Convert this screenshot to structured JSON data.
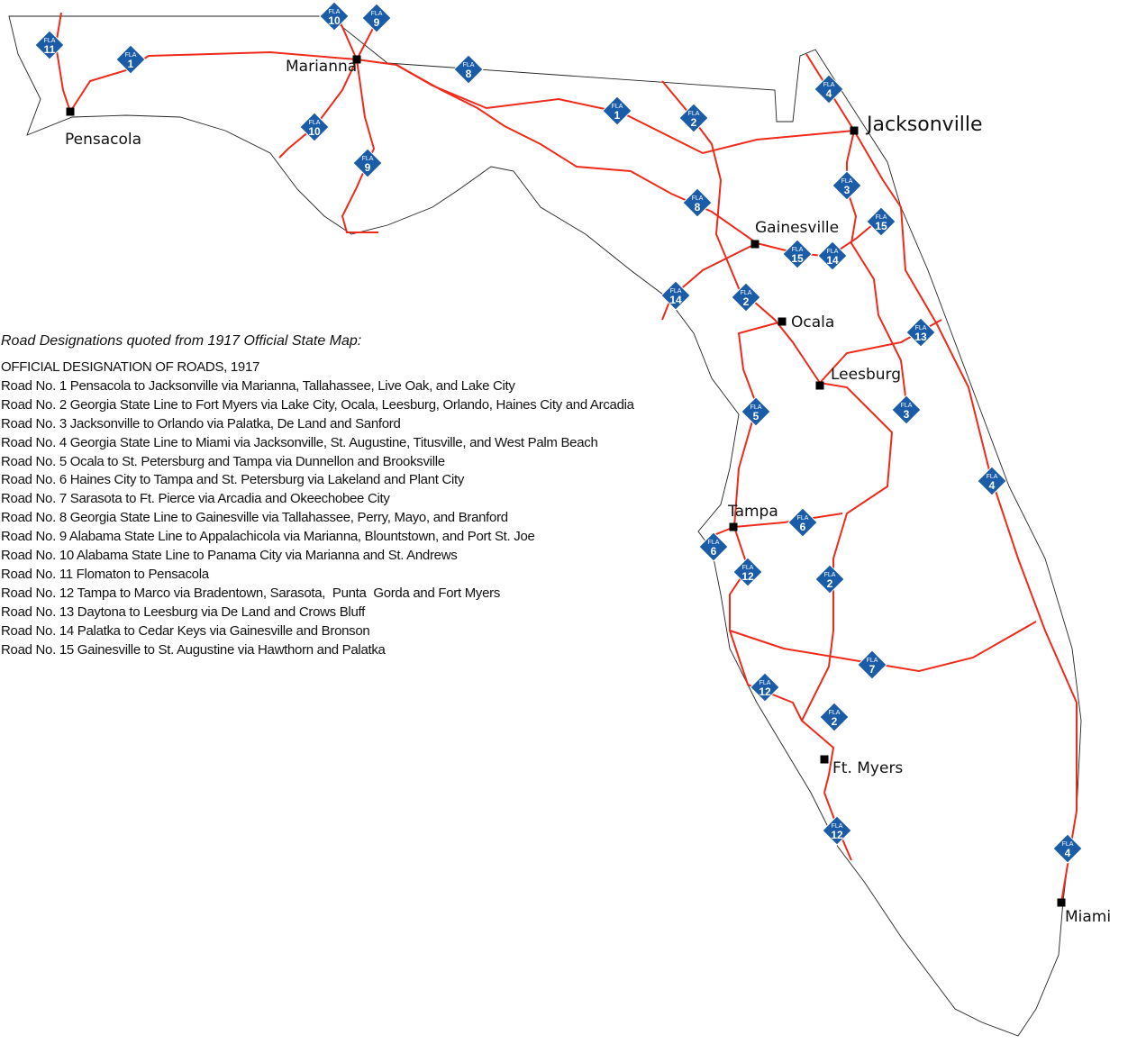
{
  "legend": {
    "title": "Road Designations quoted from 1917 Official State Map:",
    "heading": "OFFICIAL DESIGNATION OF ROADS, 1917",
    "roads": [
      "Road No. 1 Pensacola to Jacksonville via Marianna, Tallahassee, Live Oak, and Lake City",
      "Road No. 2 Georgia State Line to Fort Myers via Lake City, Ocala, Leesburg, Orlando, Haines City and Arcadia",
      "Road No. 3 Jacksonville to Orlando via Palatka, De Land and Sanford",
      "Road No. 4 Georgia State Line to Miami via Jacksonville, St. Augustine, Titusville, and West Palm Beach",
      "Road No. 5 Ocala to St. Petersburg and Tampa via Dunnellon and Brooksville",
      "Road No. 6 Haines City to Tampa and St. Petersburg via Lakeland and Plant City",
      "Road No. 7 Sarasota to Ft. Pierce via Arcadia and Okeechobee City",
      "Road No. 8 Georgia State Line to Gainesville via Tallahassee, Perry, Mayo, and Branford",
      "Road No. 9 Alabama State Line to Appalachicola via Marianna, Blountstown, and Port St. Joe",
      "Road No. 10 Alabama State Line to Panama City via Marianna and St. Andrews",
      "Road No. 11 Flomaton to Pensacola",
      "Road No. 12 Tampa to Marco via Bradentown, Sarasota,  Punta  Gorda and Fort Myers",
      "Road No. 13 Daytona to Leesburg via De Land and Crows Bluff",
      "Road No. 14 Palatka to Cedar Keys via Gainesville and Bronson",
      "Road No. 15 Gainesville to St. Augustine via Hawthorn and Palatka"
    ]
  },
  "cities": [
    "Pensacola",
    "Marianna",
    "Jacksonville",
    "Gainesville",
    "Ocala",
    "Leesburg",
    "Tampa",
    "Ft. Myers",
    "Miami"
  ],
  "shield_prefix": "FLA",
  "shields": [
    "11",
    "1",
    "10",
    "9",
    "10",
    "9",
    "8",
    "1",
    "2",
    "4",
    "3",
    "15",
    "8",
    "15",
    "14",
    "14",
    "2",
    "13",
    "5",
    "3",
    "4",
    "6",
    "6",
    "12",
    "2",
    "7",
    "12",
    "2",
    "12",
    "4"
  ],
  "colors": {
    "road": "#ee2a1b",
    "shield": "#1a5ca8",
    "coast": "#222222",
    "marker": "#000000"
  }
}
